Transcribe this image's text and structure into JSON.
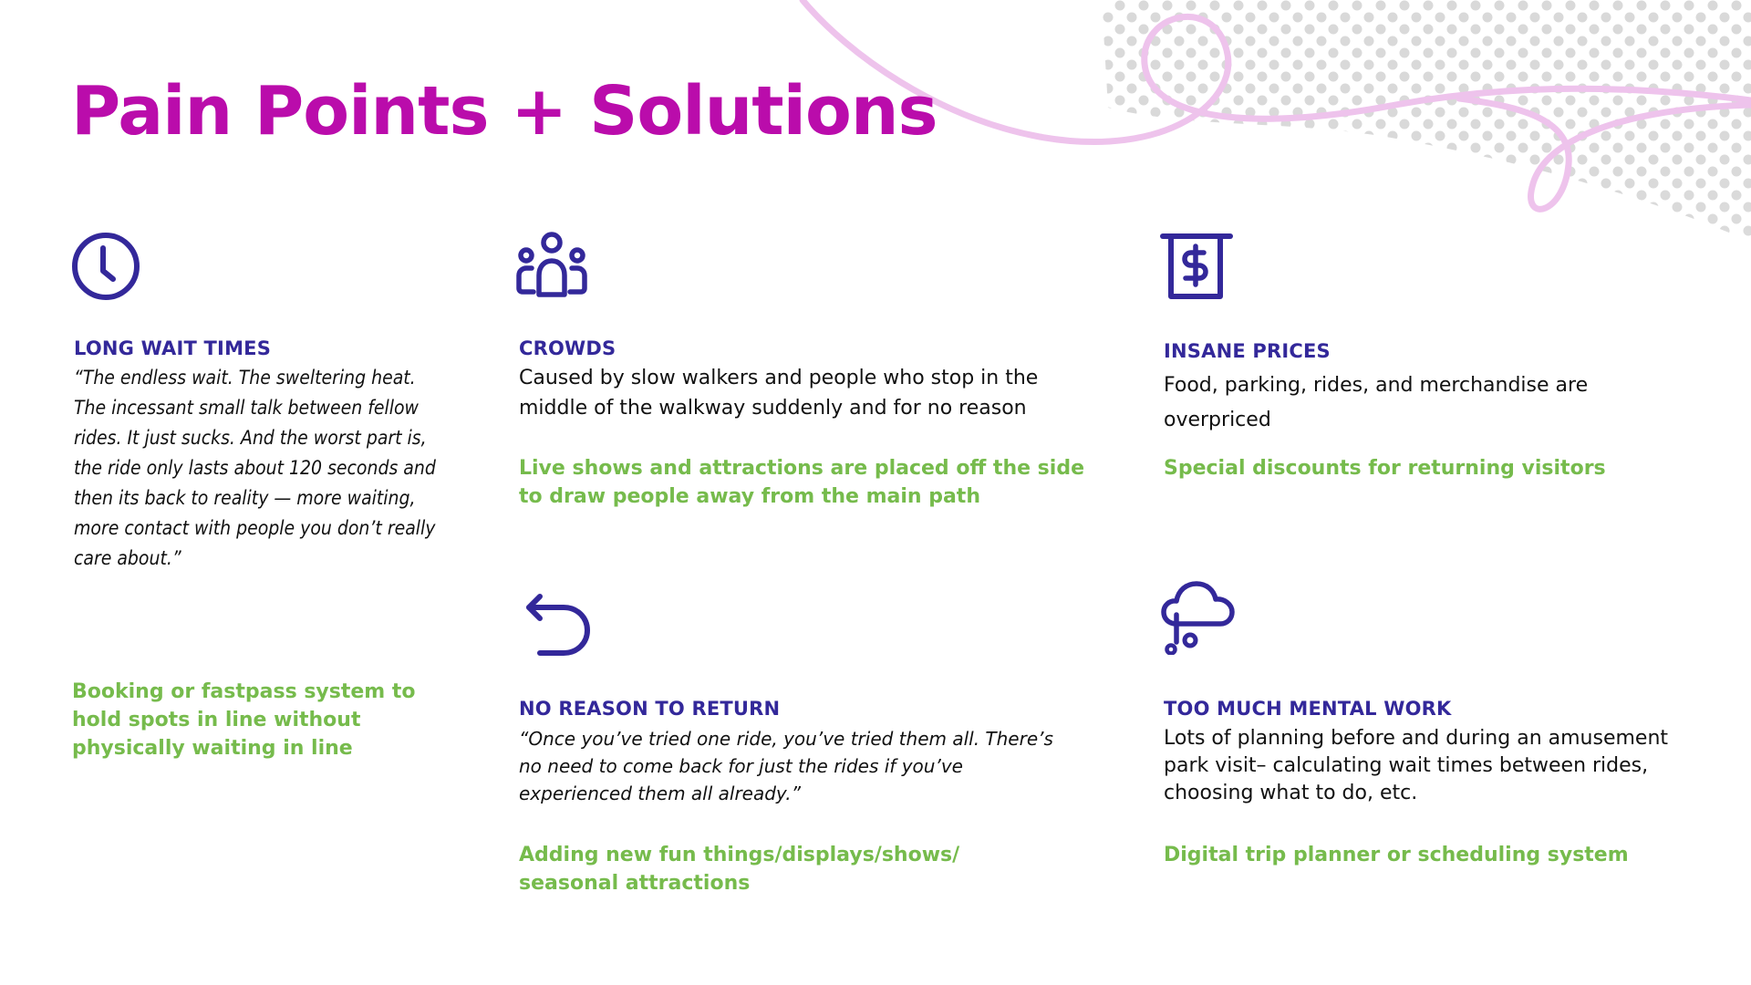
{
  "title": "Pain Points + Solutions",
  "colors": {
    "title": "#BA0CAB",
    "heading": "#33289A",
    "icon": "#33289A",
    "body_text": "#111111",
    "solution": "#76BB4C",
    "swirl": "#EEC3EC",
    "dots": "#D9D9D9"
  },
  "pain_points": [
    {
      "icon": "clock-icon",
      "heading": "LONG WAIT TIMES",
      "description": "“The endless wait. The sweltering heat. The incessant small talk between fellow rides. It just sucks. And the worst part is, the ride only lasts about 120 seconds and then its back to reality — more waiting, more contact with people you don’t really care about.”",
      "solution": "Booking or fastpass system to hold spots in line without physically waiting in line"
    },
    {
      "icon": "people-group-icon",
      "heading": "CROWDS",
      "description": "Caused by slow walkers and people who stop in the middle of the walkway suddenly and for no reason",
      "solution": "Live shows and attractions are placed off the side to draw people away from the main path"
    },
    {
      "icon": "price-receipt-icon",
      "heading": "INSANE PRICES",
      "description": "Food, parking, rides, and merchandise are overpriced",
      "solution": "Special discounts for returning visitors"
    },
    {
      "icon": "return-arrow-icon",
      "heading": "NO REASON TO RETURN",
      "description": "“Once you’ve tried one ride, you’ve tried them all. There’s no need to come back for just the rides if you’ve experienced them all already.”",
      "solution": "Adding new fun things/displays/shows/ seasonal attractions"
    },
    {
      "icon": "thought-cloud-icon",
      "heading": "TOO MUCH MENTAL WORK",
      "description": "Lots of planning before and during an amusement park visit– calculating wait times between rides, choosing what to do, etc.",
      "solution": "Digital trip planner or scheduling system"
    }
  ]
}
